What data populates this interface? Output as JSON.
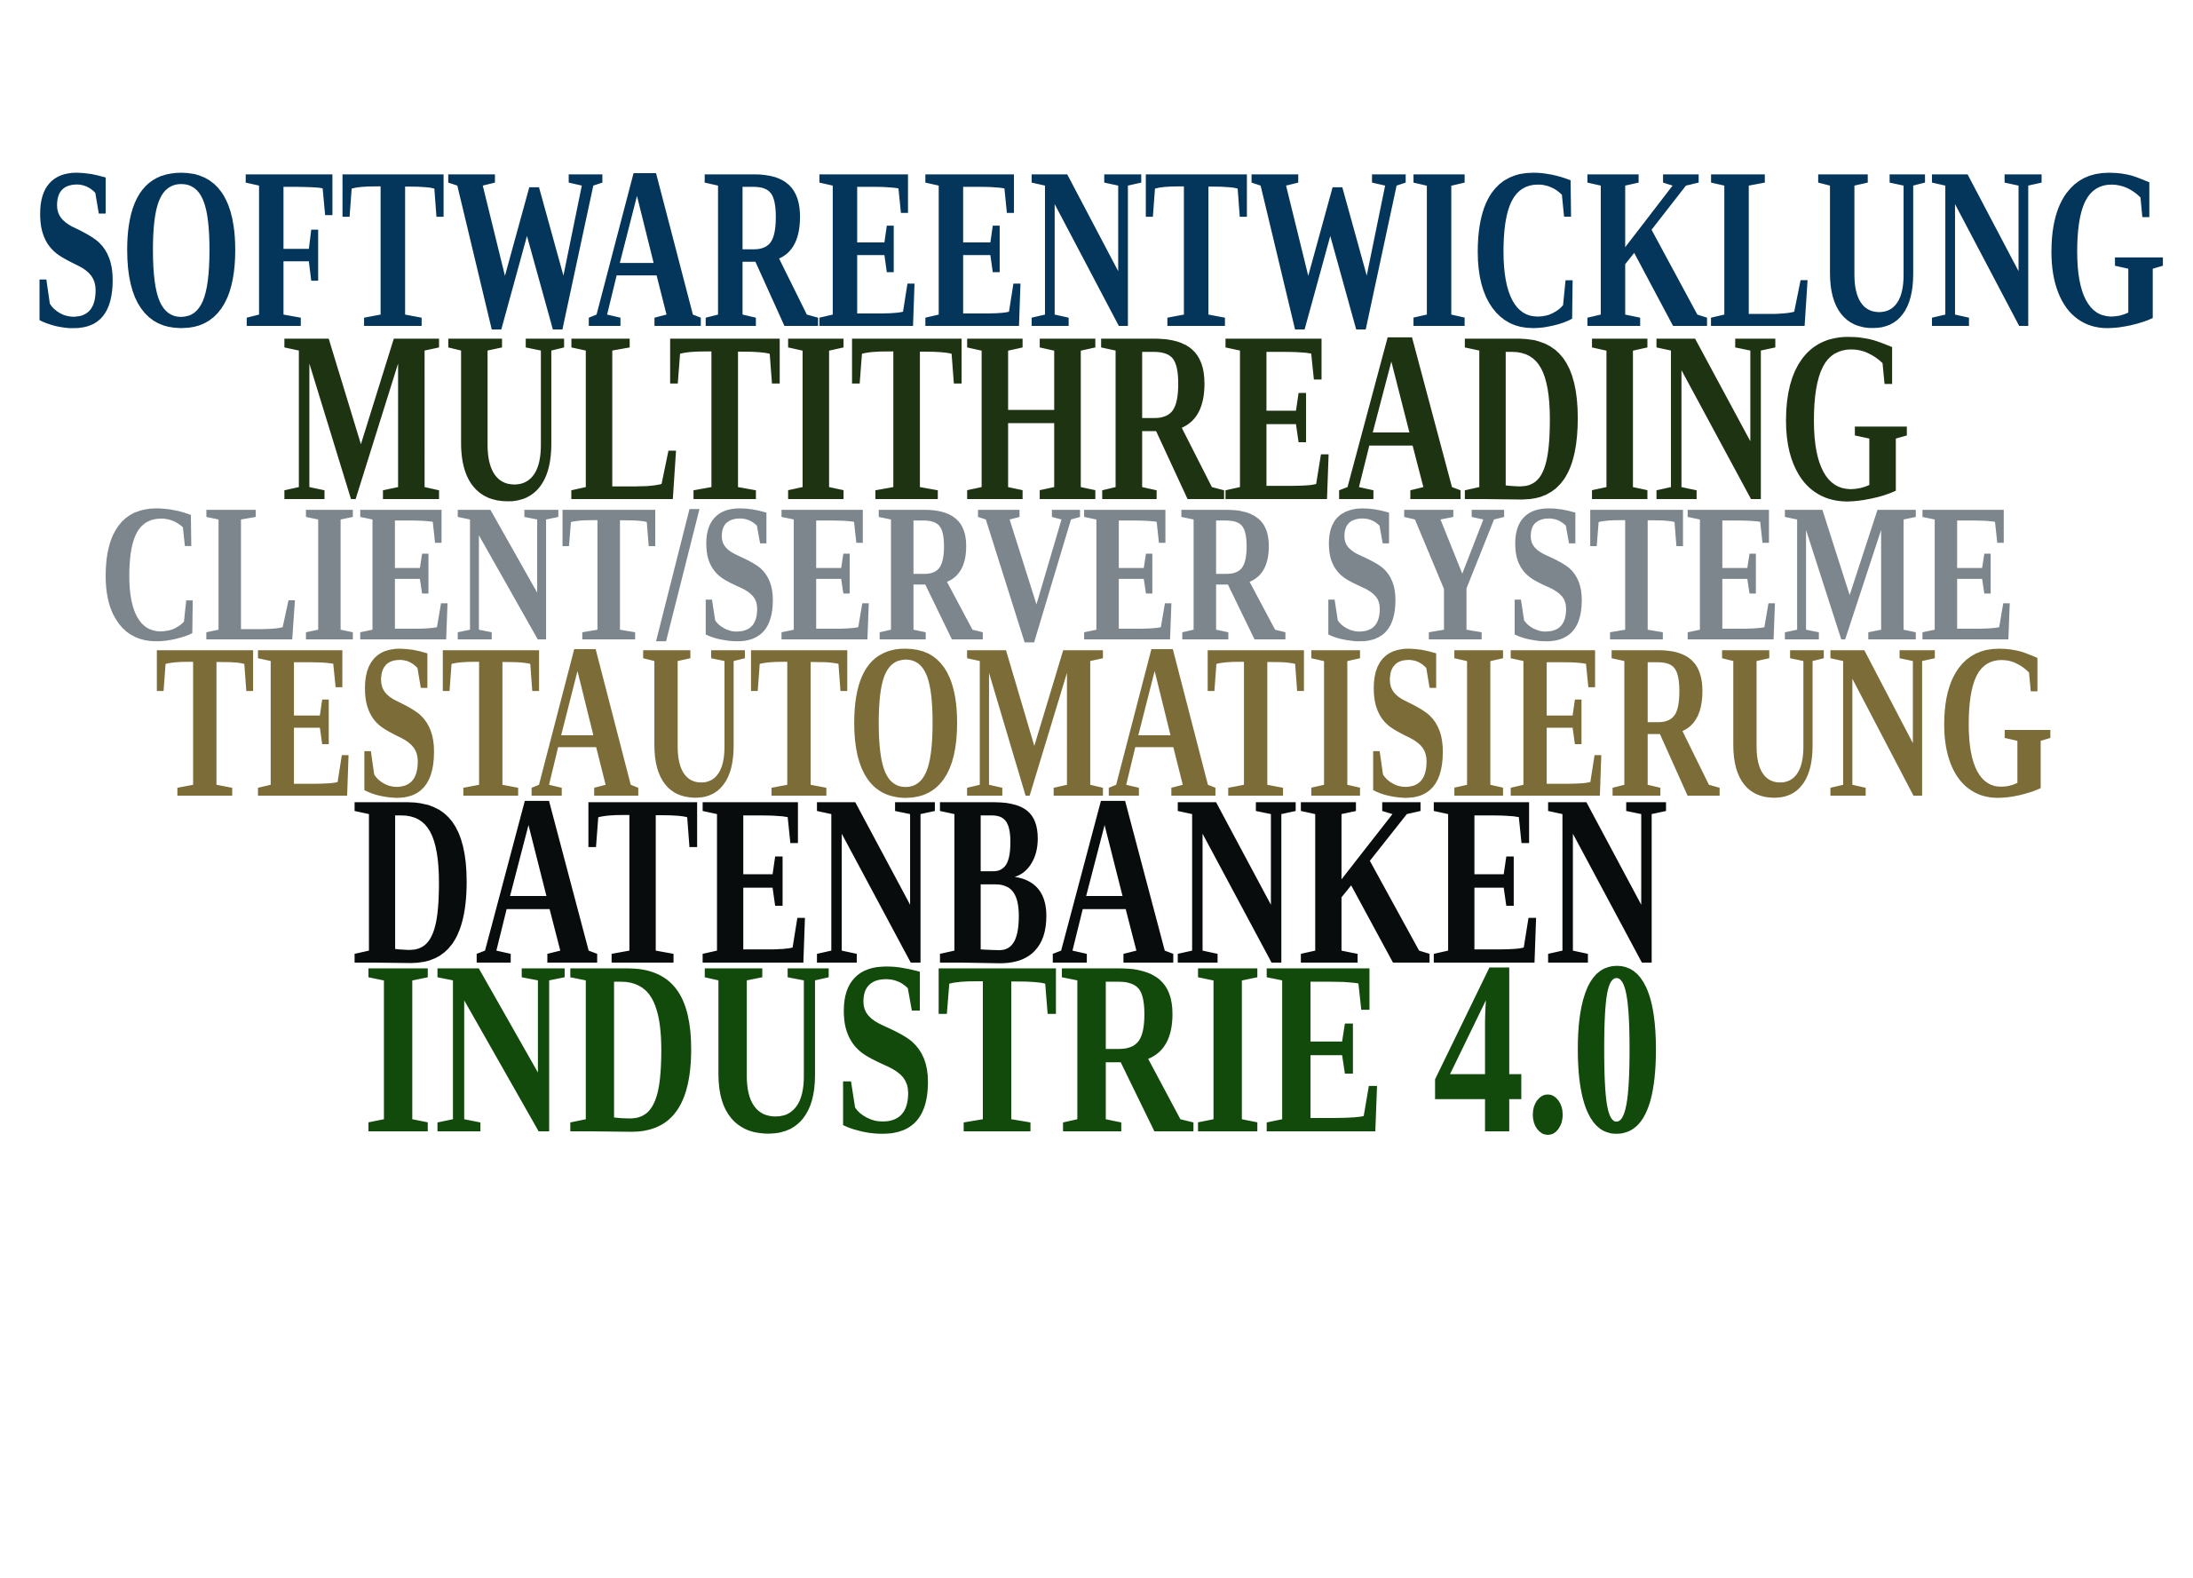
{
  "words": [
    {
      "text": "SOFTWAREENTWICKLUNG",
      "color": "#04355a"
    },
    {
      "text": "MULTITHREADING",
      "color": "#1e3312"
    },
    {
      "text": "CLIENT/SERVER SYSTEME",
      "color": "#7c868c"
    },
    {
      "text": "TESTAUTOMATISIERUNG",
      "color": "#7b6c38"
    },
    {
      "text": "DATENBANKEN",
      "color": "#090c0d"
    },
    {
      "text": "INDUSTRIE 4.0",
      "color": "#114a0a"
    }
  ]
}
